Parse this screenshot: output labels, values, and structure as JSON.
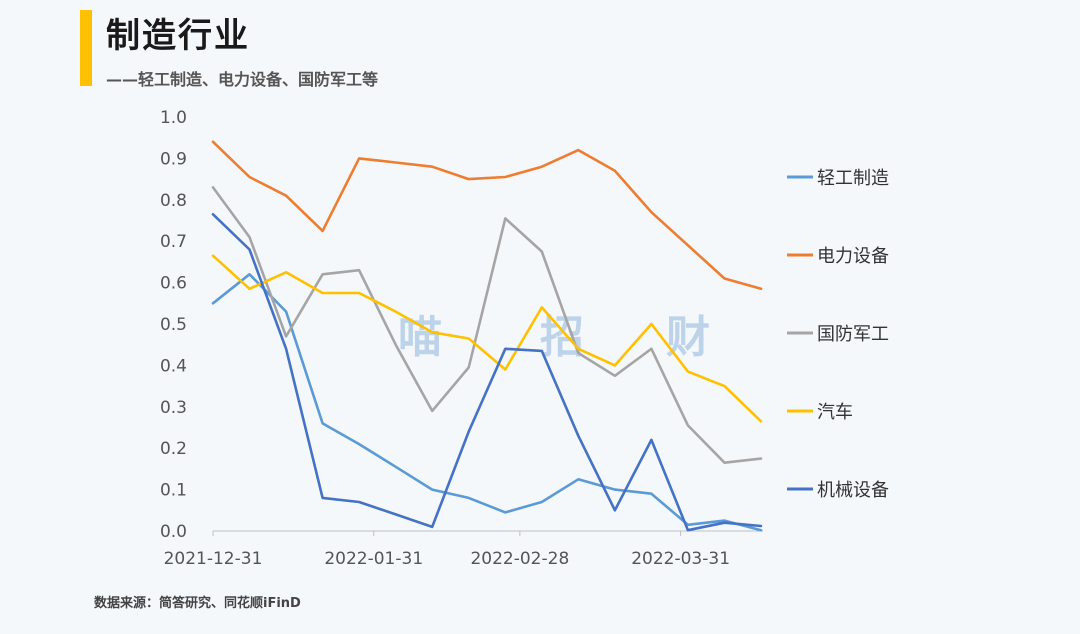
{
  "header": {
    "title": "制造行业",
    "subtitle": "——轻工制造、电力设备、国防军工等",
    "accent_color": "#FFC000"
  },
  "footer": {
    "source": "数据来源：简答研究、同花顺iFinD"
  },
  "watermark": [
    "喵",
    "招",
    "财"
  ],
  "chart_data": {
    "type": "line",
    "title": "",
    "xlabel": "",
    "ylabel": "",
    "ylim": [
      0,
      1.0
    ],
    "yticks": [
      "0.0",
      "0.1",
      "0.2",
      "0.3",
      "0.4",
      "0.5",
      "0.6",
      "0.7",
      "0.8",
      "0.9",
      "1.0"
    ],
    "x_tick_labels": [
      "2021-12-31",
      "2022-01-31",
      "2022-02-28",
      "2022-03-31"
    ],
    "x_tick_index": [
      0,
      4.4,
      8.4,
      12.8
    ],
    "legend_position": "right",
    "grid": false,
    "num_points": 16,
    "series": [
      {
        "name": "轻工制造",
        "color": "#5b9bd5",
        "values": [
          0.55,
          0.62,
          0.53,
          0.26,
          0.21,
          0.155,
          0.1,
          0.08,
          0.045,
          0.07,
          0.125,
          0.1,
          0.09,
          0.015,
          0.025,
          0.002
        ]
      },
      {
        "name": "电力设备",
        "color": "#ed7d31",
        "values": [
          0.94,
          0.855,
          0.81,
          0.725,
          0.9,
          0.89,
          0.88,
          0.85,
          0.855,
          0.88,
          0.92,
          0.87,
          0.77,
          0.69,
          0.61,
          0.585
        ]
      },
      {
        "name": "国防军工",
        "color": "#a5a5a5",
        "values": [
          0.83,
          0.71,
          0.47,
          0.62,
          0.63,
          0.45,
          0.29,
          0.395,
          0.755,
          0.675,
          0.43,
          0.375,
          0.44,
          0.255,
          0.165,
          0.175
        ]
      },
      {
        "name": "汽车",
        "color": "#ffc000",
        "values": [
          0.665,
          0.585,
          0.625,
          0.575,
          0.575,
          0.53,
          0.48,
          0.465,
          0.39,
          0.54,
          0.44,
          0.4,
          0.5,
          0.385,
          0.35,
          0.265
        ]
      },
      {
        "name": "机械设备",
        "color": "#4472c4",
        "values": [
          0.765,
          0.68,
          0.44,
          0.08,
          0.07,
          0.04,
          0.01,
          0.24,
          0.44,
          0.435,
          0.23,
          0.05,
          0.22,
          0.002,
          0.02,
          0.012
        ]
      }
    ]
  }
}
